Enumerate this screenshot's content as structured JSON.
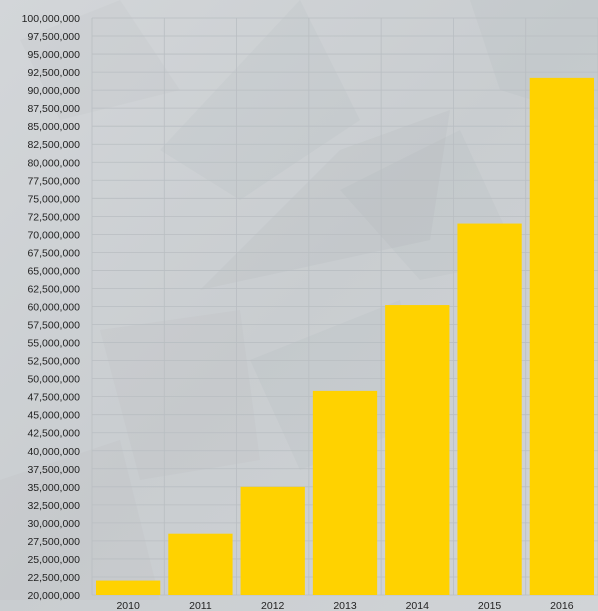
{
  "chart_data": {
    "type": "bar",
    "title": "",
    "xlabel": "",
    "ylabel": "",
    "categories": [
      "2010",
      "2011",
      "2012",
      "2013",
      "2014",
      "2015",
      "2016"
    ],
    "values": [
      22000000,
      28500000,
      35000000,
      48300000,
      60200000,
      71500000,
      91700000
    ],
    "ylim": [
      20000000,
      100000000
    ],
    "ytick_step": 2500000,
    "ytick_labels": [
      "20,000,000",
      "22,500,000",
      "25,000,000",
      "27,500,000",
      "30,000,000",
      "32,500,000",
      "35,000,000",
      "37,500,000",
      "40,000,000",
      "42,500,000",
      "45,000,000",
      "47,500,000",
      "50,000,000",
      "52,500,000",
      "55,000,000",
      "57,500,000",
      "60,000,000",
      "62,500,000",
      "65,000,000",
      "67,500,000",
      "70,000,000",
      "72,500,000",
      "75,000,000",
      "77,500,000",
      "80,000,000",
      "82,500,000",
      "85,000,000",
      "87,500,000",
      "90,000,000",
      "92,500,000",
      "95,000,000",
      "97,500,000",
      "100,000,000"
    ],
    "grid": true,
    "legend": "none",
    "colors": {
      "bar": "#ffd200",
      "background": "#cfd3d6",
      "grid": "#b9bec2",
      "text": "#222222"
    }
  }
}
